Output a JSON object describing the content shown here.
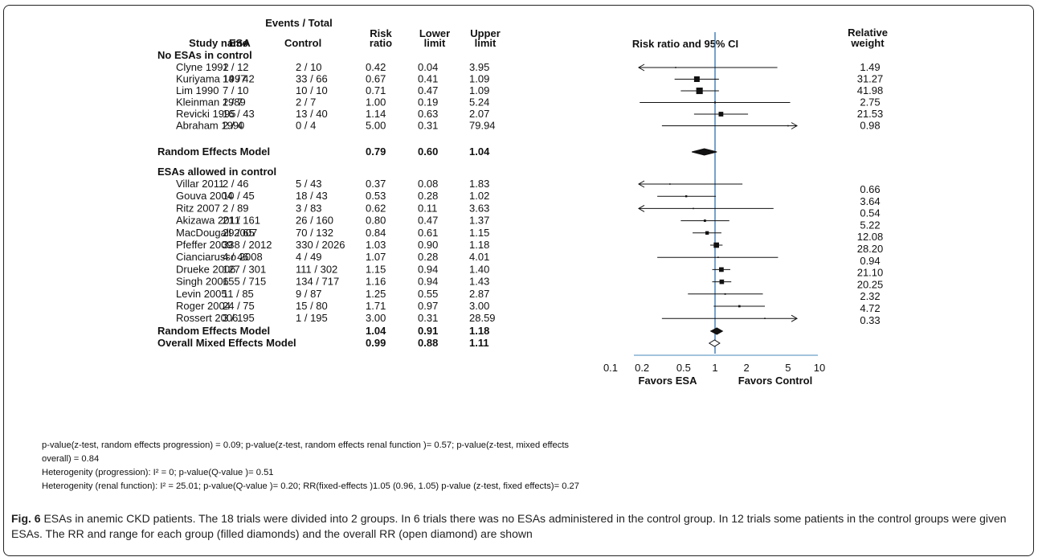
{
  "chart_data": {
    "type": "forest",
    "headers": {
      "events_total": "Events / Total",
      "study_name": "Study name",
      "esa": "ESA",
      "control": "Control",
      "risk_ratio": [
        "Risk",
        "ratio"
      ],
      "lower_limit": [
        "Lower",
        "limit"
      ],
      "upper_limit": [
        "Upper",
        "limit"
      ],
      "plot": "Risk ratio and 95% CI",
      "relative_weight": [
        "Relative",
        "weight"
      ]
    },
    "groups": [
      {
        "label": "No ESAs in control",
        "studies": [
          {
            "name": "Clyne 1992",
            "esa": "1 / 12",
            "control": "2 / 10",
            "rr": "0.42",
            "lower": "0.04",
            "upper": "3.95",
            "weight": "1.49",
            "rr_value": 0.42,
            "lower_value": 0.04,
            "upper_value": 3.95,
            "weight_value": 1.49
          },
          {
            "name": "Kuriyama 1997",
            "esa": "14 / 42",
            "control": "33 / 66",
            "rr": "0.67",
            "lower": "0.41",
            "upper": "1.09",
            "weight": "31.27",
            "rr_value": 0.67,
            "lower_value": 0.41,
            "upper_value": 1.09,
            "weight_value": 31.27
          },
          {
            "name": "Lim 1990",
            "esa": "7 / 10",
            "control": "10 / 10",
            "rr": "0.71",
            "lower": "0.47",
            "upper": "1.09",
            "weight": "41.98",
            "rr_value": 0.71,
            "lower_value": 0.47,
            "upper_value": 1.09,
            "weight_value": 41.98
          },
          {
            "name": "Kleinman 1989",
            "esa": "2 / 7",
            "control": "2 / 7",
            "rr": "1.00",
            "lower": "0.19",
            "upper": "5.24",
            "weight": "2.75",
            "rr_value": 1.0,
            "lower_value": 0.19,
            "upper_value": 5.24,
            "weight_value": 2.75
          },
          {
            "name": "Revicki 1995",
            "esa": "16 / 43",
            "control": "13 / 40",
            "rr": "1.14",
            "lower": "0.63",
            "upper": "2.07",
            "weight": "21.53",
            "rr_value": 1.14,
            "lower_value": 0.63,
            "upper_value": 2.07,
            "weight_value": 21.53
          },
          {
            "name": "Abraham 1990",
            "esa": "2 / 4",
            "control": "0 / 4",
            "rr": "5.00",
            "lower": "0.31",
            "upper": "79.94",
            "weight": "0.98",
            "rr_value": 5.0,
            "lower_value": 0.31,
            "upper_value": 79.94,
            "weight_value": 0.98
          }
        ],
        "summary": {
          "name": "Random Effects Model",
          "rr": "0.79",
          "lower": "0.60",
          "upper": "1.04",
          "rr_value": 0.79,
          "lower_value": 0.6,
          "upper_value": 1.04
        }
      },
      {
        "label": "ESAs allowed in control",
        "studies": [
          {
            "name": "Villar 2011",
            "esa": "2 / 46",
            "control": "5 / 43",
            "rr": "0.37",
            "lower": "0.08",
            "upper": "1.83",
            "weight": "0.66",
            "rr_value": 0.37,
            "lower_value": 0.08,
            "upper_value": 1.83,
            "weight_value": 0.66
          },
          {
            "name": "Gouva 2004",
            "esa": "10 / 45",
            "control": "18 / 43",
            "rr": "0.53",
            "lower": "0.28",
            "upper": "1.02",
            "weight": "3.64",
            "rr_value": 0.53,
            "lower_value": 0.28,
            "upper_value": 1.02,
            "weight_value": 3.64
          },
          {
            "name": "Ritz 2007",
            "esa": "2 / 89",
            "control": "3 / 83",
            "rr": "0.62",
            "lower": "0.11",
            "upper": "3.63",
            "weight": "0.54",
            "rr_value": 0.62,
            "lower_value": 0.11,
            "upper_value": 3.63,
            "weight_value": 0.54
          },
          {
            "name": "Akizawa 2011",
            "esa": "21 / 161",
            "control": "26 / 160",
            "rr": "0.80",
            "lower": "0.47",
            "upper": "1.37",
            "weight": "5.22",
            "rr_value": 0.8,
            "lower_value": 0.47,
            "upper_value": 1.37,
            "weight_value": 5.22
          },
          {
            "name": "MacDougall 2007",
            "esa": "29 / 65",
            "control": "70 / 132",
            "rr": "0.84",
            "lower": "0.61",
            "upper": "1.15",
            "weight": "12.08",
            "rr_value": 0.84,
            "lower_value": 0.61,
            "upper_value": 1.15,
            "weight_value": 12.08
          },
          {
            "name": "Pfeffer 2009",
            "esa": "338 / 2012",
            "control": "330 / 2026",
            "rr": "1.03",
            "lower": "0.90",
            "upper": "1.18",
            "weight": "28.20",
            "rr_value": 1.03,
            "lower_value": 0.9,
            "upper_value": 1.18,
            "weight_value": 28.2
          },
          {
            "name": "Cianciarusso 2008",
            "esa": "4 / 46",
            "control": "4 / 49",
            "rr": "1.07",
            "lower": "0.28",
            "upper": "4.01",
            "weight": "0.94",
            "rr_value": 1.07,
            "lower_value": 0.28,
            "upper_value": 4.01,
            "weight_value": 0.94
          },
          {
            "name": "Drueke 2006",
            "esa": "127 / 301",
            "control": "111 / 302",
            "rr": "1.15",
            "lower": "0.94",
            "upper": "1.40",
            "weight": "21.10",
            "rr_value": 1.15,
            "lower_value": 0.94,
            "upper_value": 1.4,
            "weight_value": 21.1
          },
          {
            "name": "Singh 2006",
            "esa": "155 / 715",
            "control": "134 / 717",
            "rr": "1.16",
            "lower": "0.94",
            "upper": "1.43",
            "weight": "20.25",
            "rr_value": 1.16,
            "lower_value": 0.94,
            "upper_value": 1.43,
            "weight_value": 20.25
          },
          {
            "name": "Levin 2005",
            "esa": "11 / 85",
            "control": "9 / 87",
            "rr": "1.25",
            "lower": "0.55",
            "upper": "2.87",
            "weight": "2.32",
            "rr_value": 1.25,
            "lower_value": 0.55,
            "upper_value": 2.87,
            "weight_value": 2.32
          },
          {
            "name": "Roger 2004",
            "esa": "24 / 75",
            "control": "15 / 80",
            "rr": "1.71",
            "lower": "0.97",
            "upper": "3.00",
            "weight": "4.72",
            "rr_value": 1.71,
            "lower_value": 0.97,
            "upper_value": 3.0,
            "weight_value": 4.72
          },
          {
            "name": "Rossert 2006",
            "esa": "3 / 195",
            "control": "1 / 195",
            "rr": "3.00",
            "lower": "0.31",
            "upper": "28.59",
            "weight": "0.33",
            "rr_value": 3.0,
            "lower_value": 0.31,
            "upper_value": 28.59,
            "weight_value": 0.33
          }
        ],
        "summary": {
          "name": "Random Effects Model",
          "rr": "1.04",
          "lower": "0.91",
          "upper": "1.18",
          "rr_value": 1.04,
          "lower_value": 0.91,
          "upper_value": 1.18
        }
      }
    ],
    "overall": {
      "name": "Overall Mixed Effects Model",
      "rr": "0.99",
      "lower": "0.88",
      "upper": "1.11",
      "rr_value": 0.99,
      "lower_value": 0.88,
      "upper_value": 1.11
    },
    "x_axis": {
      "scale": "log",
      "range": [
        0.1,
        10
      ],
      "ticks": [
        0.1,
        0.2,
        0.5,
        1,
        2,
        5,
        10
      ],
      "tick_labels": [
        "0.1",
        "0.2",
        "0.5",
        "1",
        "2",
        "5",
        "10"
      ],
      "reference": 1,
      "label_left": "Favors ESA",
      "label_right": "Favors Control"
    },
    "colors": {
      "reference_line": "#2f6faa",
      "axis_line": "#6aa0c8",
      "marks": "#111111"
    }
  },
  "notes": [
    "p-value(z-test, random effects progression) = 0.09; p-value(z-test, random effects renal function )= 0.57; p-value(z-test, mixed effects",
    "overall) = 0.84",
    "Heterogenity (progression): I² = 0; p-value(Q-value )= 0.51",
    "Heterogenity (renal function): I² = 25.01; p-value(Q-value )= 0.20; RR(fixed-effects )1.05 (0.96, 1.05) p-value (z-test, fixed effects)= 0.27"
  ],
  "caption": {
    "label": "Fig. 6",
    "text": " ESAs in anemic CKD patients. The 18 trials were divided into 2 groups. In 6 trials there was no ESAs administered in the control group. In 12 trials some patients in the control groups were given ESAs. The RR and range for each group (filled diamonds) and the overall RR (open diamond) are shown"
  }
}
